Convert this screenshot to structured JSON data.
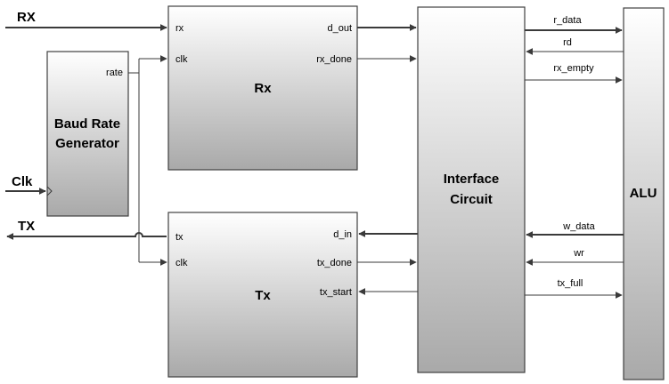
{
  "external": {
    "rx_label": "RX",
    "clk_label": "Clk",
    "tx_label": "TX"
  },
  "blocks": {
    "baud_gen": {
      "line1": "Baud Rate",
      "line2": "Generator",
      "rate_port": "rate"
    },
    "rx": {
      "title": "Rx",
      "port_rx": "rx",
      "port_clk": "clk",
      "port_dout": "d_out",
      "port_rxdone": "rx_done"
    },
    "tx": {
      "title": "Tx",
      "port_tx": "tx",
      "port_clk": "clk",
      "port_din": "d_in",
      "port_txdone": "tx_done",
      "port_txstart": "tx_start"
    },
    "interface": {
      "line1": "Interface",
      "line2": "Circuit"
    },
    "alu": {
      "title": "ALU"
    }
  },
  "signals": {
    "r_data": "r_data",
    "rd": "rd",
    "rx_empty": "rx_empty",
    "w_data": "w_data",
    "wr": "wr",
    "tx_full": "tx_full"
  },
  "colors": {
    "box_top": "#ffffff",
    "box_bottom": "#a9a9a9",
    "line": "#3a3a3a"
  }
}
